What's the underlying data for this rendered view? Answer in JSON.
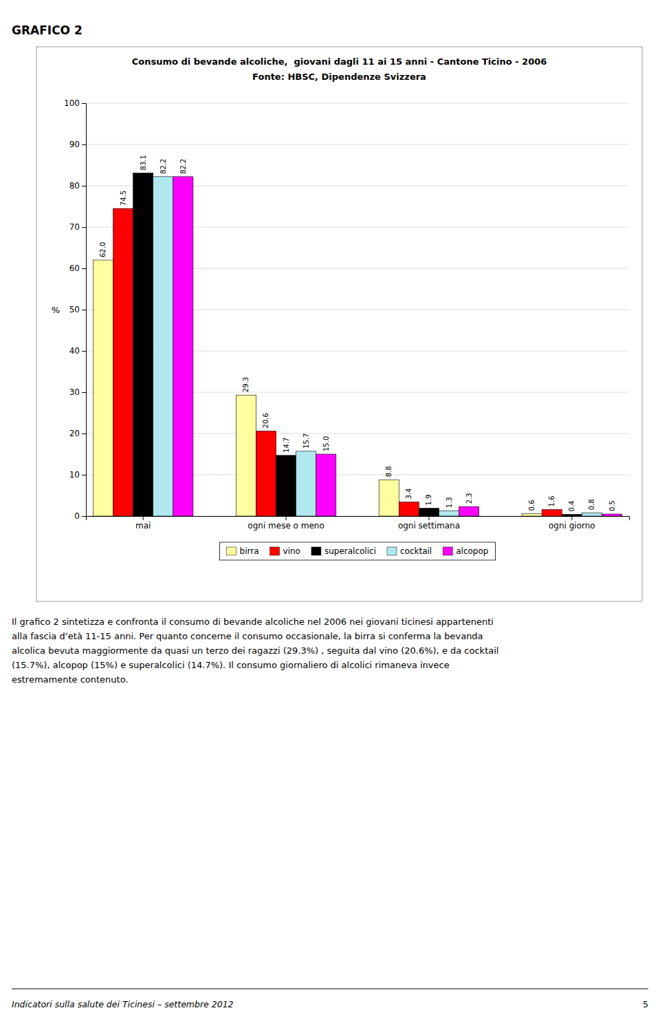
{
  "heading": "GRAFICO 2",
  "body_text": [
    "Il grafico 2 sintetizza e confronta il consumo di bevande alcoliche nel 2006 nei giovani ticinesi appartenenti",
    "alla fascia d’età 11-15 anni. Per quanto concerne il consumo occasionale, la birra si conferma la bevanda",
    "alcolica bevuta maggiormente da quasi un terzo dei ragazzi (29.3%) , seguita dal vino (20.6%), e da cocktail",
    "(15.7%), alcopop (15%) e superalcolici (14.7%). Il consumo giornaliero di alcolici rimaneva invece",
    "estremamente contenuto."
  ],
  "footer_text": "Indicatori sulla salute dei Ticinesi – settembre 2012",
  "footer_page": "5",
  "chart_data": {
    "type": "bar",
    "title": "Consumo di bevande alcoliche,  giovani dagli 11 ai 15 anni - Cantone Ticino - 2006",
    "subtitle": "Fonte: HBSC, Dipendenze Svizzera",
    "categories": [
      "mai",
      "ogni mese o meno",
      "ogni settimana",
      "ogni giorno"
    ],
    "series": [
      {
        "name": "birra",
        "color": "#FFFFA0",
        "values": [
          62.0,
          29.3,
          8.8,
          0.6
        ],
        "value_labels": [
          "62.0",
          "29.3",
          "8.8",
          "0.6"
        ]
      },
      {
        "name": "vino",
        "color": "#FF0000",
        "values": [
          74.5,
          20.6,
          3.4,
          1.6
        ],
        "value_labels": [
          "74.5",
          "20.6",
          "3.4",
          "1.6"
        ]
      },
      {
        "name": "superalcolici",
        "color": "#000000",
        "values": [
          83.1,
          14.7,
          1.9,
          0.4
        ],
        "value_labels": [
          "83.1",
          "14.7",
          "1.9",
          "0.4"
        ]
      },
      {
        "name": "cocktail",
        "color": "#B0E8F0",
        "values": [
          82.2,
          15.7,
          1.3,
          0.8
        ],
        "value_labels": [
          "82.2",
          "15.7",
          "1.3",
          "0.8"
        ]
      },
      {
        "name": "alcopop",
        "color": "#FF00FF",
        "values": [
          82.2,
          15.0,
          2.3,
          0.5
        ],
        "value_labels": [
          "82.2",
          "15.0",
          "2.3",
          "0.5"
        ]
      }
    ],
    "ylim": [
      0,
      100
    ],
    "yticks": [
      0,
      10,
      20,
      30,
      40,
      50,
      60,
      70,
      80,
      90,
      100
    ],
    "y_label": "%",
    "grid": true,
    "legend": "bottom",
    "data_labels": true
  }
}
